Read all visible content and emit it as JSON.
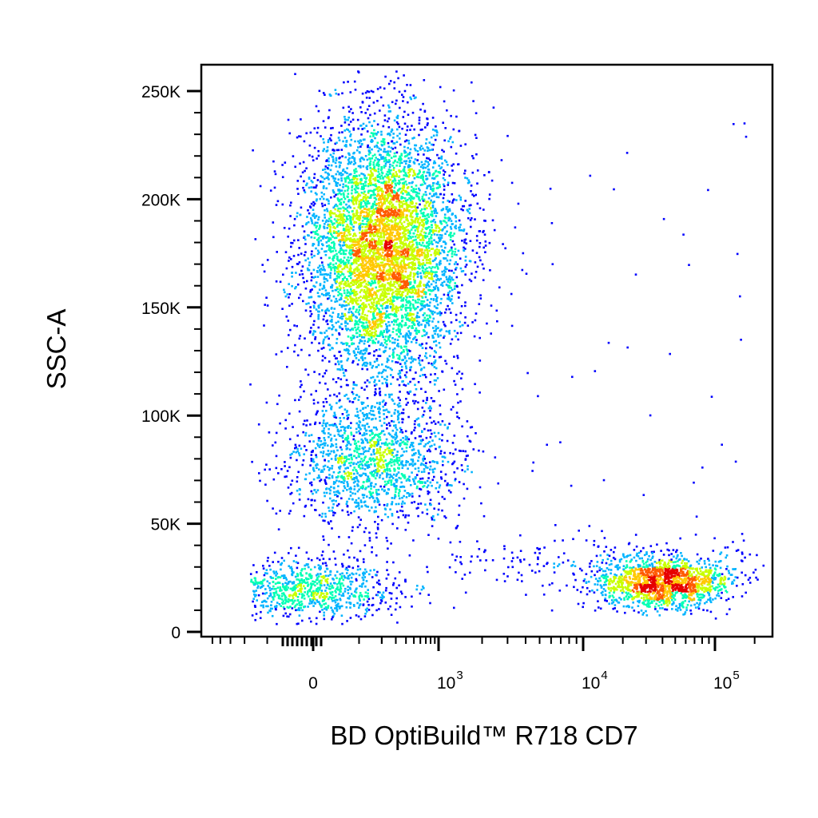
{
  "chart_data": {
    "type": "scatter",
    "title": "",
    "xlabel": "BD OptiBuild™ R718 CD7",
    "ylabel": "SSC-A",
    "x_scale": "biexponential",
    "x_ticks": [
      {
        "value": 0,
        "label": "0"
      },
      {
        "value": 1000,
        "base": "10",
        "exp": "3"
      },
      {
        "value": 10000,
        "base": "10",
        "exp": "4"
      },
      {
        "value": 100000,
        "base": "10",
        "exp": "5"
      }
    ],
    "y_scale": "linear",
    "ylim": [
      0,
      262144
    ],
    "y_ticks": [
      {
        "value": 0,
        "label": "0"
      },
      {
        "value": 50000,
        "label": "50K"
      },
      {
        "value": 100000,
        "label": "100K"
      },
      {
        "value": 150000,
        "label": "150K"
      },
      {
        "value": 200000,
        "label": "200K"
      },
      {
        "value": 250000,
        "label": "250K"
      }
    ],
    "color_scale": [
      "#0000ff",
      "#00b4ff",
      "#00ffb4",
      "#c8ff00",
      "#ffc800",
      "#ff5a00",
      "#e60000"
    ],
    "populations": [
      {
        "center_x": 200,
        "sd_x_decades": 0.35,
        "center_y": 178000,
        "sd_y": 30000,
        "n": 5600
      },
      {
        "center_x": 150,
        "sd_x_decades": 0.4,
        "center_y": 80000,
        "sd_y": 15000,
        "n": 1500
      },
      {
        "center_x": 0,
        "sd_x_decades": 0.4,
        "center_y": 20000,
        "sd_y": 7000,
        "n": 900
      },
      {
        "center_x": 40000,
        "sd_x_decades": 0.25,
        "center_y": 23000,
        "sd_y": 6000,
        "n": 1500
      }
    ]
  }
}
